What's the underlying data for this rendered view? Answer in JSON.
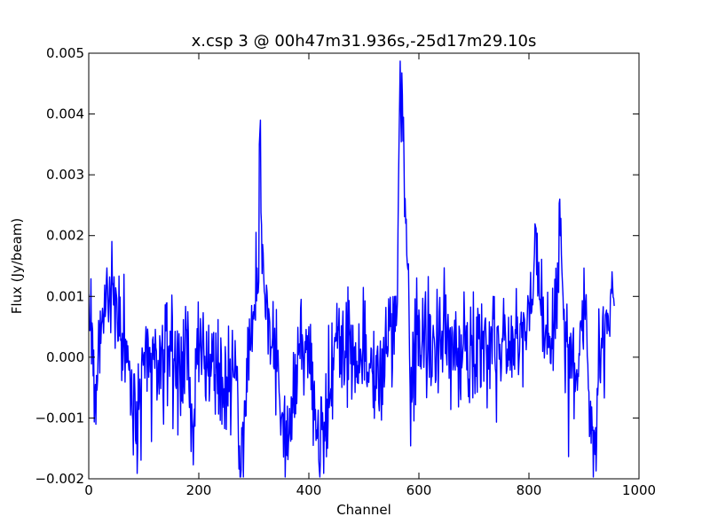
{
  "chart_data": {
    "type": "line",
    "title": "x.csp 3 @ 00h47m31.936s,-25d17m29.10s",
    "xlabel": "Channel",
    "ylabel": "Flux (Jy/beam)",
    "xlim": [
      0,
      1000
    ],
    "ylim": [
      -0.002,
      0.005
    ],
    "xticks": [
      0,
      200,
      400,
      600,
      800,
      1000
    ],
    "xtick_labels": [
      "0",
      "200",
      "400",
      "600",
      "800",
      "1000"
    ],
    "yticks": [
      -0.002,
      -0.001,
      0.0,
      0.001,
      0.002,
      0.003,
      0.004,
      0.005
    ],
    "ytick_labels": [
      "−0.002",
      "−0.001",
      "0.000",
      "0.001",
      "0.002",
      "0.003",
      "0.004",
      "0.005"
    ],
    "grid": false,
    "line_color": "#0000ff",
    "noise_sigma": 0.00048,
    "series_control_points": [
      [
        0,
        0.0003
      ],
      [
        4,
        0.0006
      ],
      [
        8,
        0.0001
      ],
      [
        12,
        -0.0005
      ],
      [
        16,
        -0.0003
      ],
      [
        20,
        0.0004
      ],
      [
        28,
        0.0007
      ],
      [
        35,
        0.0011
      ],
      [
        42,
        0.0013
      ],
      [
        50,
        0.0004
      ],
      [
        70,
        0.0002
      ],
      [
        86,
        -0.0012
      ],
      [
        100,
        0.0001
      ],
      [
        130,
        -0.0001
      ],
      [
        150,
        0.0002
      ],
      [
        160,
        -0.0002
      ],
      [
        170,
        -0.0001
      ],
      [
        180,
        0.0003
      ],
      [
        187,
        -0.0014
      ],
      [
        200,
        0.0002
      ],
      [
        250,
        -0.0004
      ],
      [
        270,
        -0.0006
      ],
      [
        276,
        -0.0019
      ],
      [
        280,
        -0.0014
      ],
      [
        290,
        0.0002
      ],
      [
        300,
        0.0005
      ],
      [
        306,
        0.0012
      ],
      [
        309,
        0.0019
      ],
      [
        312,
        0.0038
      ],
      [
        314,
        0.002
      ],
      [
        318,
        0.0013
      ],
      [
        322,
        0.0009
      ],
      [
        330,
        0.0003
      ],
      [
        340,
        0.0001
      ],
      [
        356,
        -0.0014
      ],
      [
        380,
        -0.0001
      ],
      [
        400,
        0.0003
      ],
      [
        420,
        -0.0015
      ],
      [
        450,
        0.0002
      ],
      [
        500,
        0.0001
      ],
      [
        530,
        -0.0002
      ],
      [
        556,
        0.0004
      ],
      [
        560,
        0.001
      ],
      [
        562,
        0.0023
      ],
      [
        565,
        0.0047
      ],
      [
        567,
        0.0049
      ],
      [
        569,
        0.0042
      ],
      [
        572,
        0.0036
      ],
      [
        575,
        0.0026
      ],
      [
        578,
        0.0015
      ],
      [
        582,
        0.0005
      ],
      [
        584,
        -0.001
      ],
      [
        590,
        0.0003
      ],
      [
        620,
        0.0001
      ],
      [
        660,
        0.0002
      ],
      [
        700,
        0.0001
      ],
      [
        750,
        0.0002
      ],
      [
        790,
        0.0004
      ],
      [
        800,
        0.0006
      ],
      [
        806,
        0.0011
      ],
      [
        812,
        0.0021
      ],
      [
        816,
        0.0009
      ],
      [
        830,
        0.0004
      ],
      [
        845,
        0.0003
      ],
      [
        852,
        0.0012
      ],
      [
        856,
        0.0026
      ],
      [
        860,
        0.001
      ],
      [
        870,
        0.0004
      ],
      [
        880,
        -0.0002
      ],
      [
        900,
        0.0004
      ],
      [
        920,
        -0.0016
      ],
      [
        930,
        0.0002
      ],
      [
        950,
        0.001
      ],
      [
        955,
        0.0006
      ]
    ],
    "x_max_channel": 955,
    "peaks": [
      {
        "x": 312,
        "y": 0.0039
      },
      {
        "x": 566,
        "y": 0.00487
      },
      {
        "x": 856,
        "y": 0.0026
      },
      {
        "x": 812,
        "y": 0.00215
      },
      {
        "x": 276,
        "y": -0.00197
      },
      {
        "x": 920,
        "y": -0.0016
      }
    ]
  }
}
